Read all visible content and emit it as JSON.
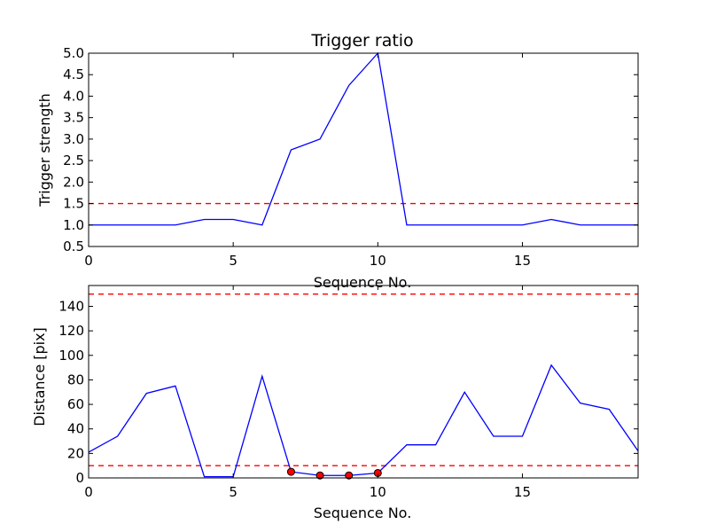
{
  "colors": {
    "line": "#0000ff",
    "threshold": "#ff0000",
    "marker_fill": "#ff0000",
    "marker_edge": "#000000",
    "frame": "#000000"
  },
  "chart_data": [
    {
      "type": "line",
      "title": "Trigger ratio",
      "xlabel": "Sequence No.",
      "ylabel": "Trigger strength",
      "xlim": [
        0,
        19
      ],
      "ylim": [
        0.5,
        5.0
      ],
      "xticks": [
        0,
        5,
        10,
        15
      ],
      "xtick_labels": [
        "0",
        "5",
        "10",
        "15"
      ],
      "yticks": [
        0.5,
        1.0,
        1.5,
        2.0,
        2.5,
        3.0,
        3.5,
        4.0,
        4.5,
        5.0
      ],
      "ytick_labels": [
        "0.5",
        "1.0",
        "1.5",
        "2.0",
        "2.5",
        "3.0",
        "3.5",
        "4.0",
        "4.5",
        "5.0"
      ],
      "grid": false,
      "x": [
        0,
        1,
        2,
        3,
        4,
        5,
        6,
        7,
        8,
        9,
        10,
        11,
        12,
        13,
        14,
        15,
        16,
        17,
        18,
        19
      ],
      "series": [
        {
          "values": [
            1.0,
            1.0,
            1.0,
            1.0,
            1.13,
            1.13,
            1.0,
            2.75,
            3.0,
            4.25,
            5.0,
            1.0,
            1.0,
            1.0,
            1.0,
            1.0,
            1.13,
            1.0,
            1.0,
            1.0
          ]
        }
      ],
      "hlines": [
        1.5
      ],
      "markers": {
        "x": [],
        "y": []
      }
    },
    {
      "type": "line",
      "title": "",
      "xlabel": "Sequence No.",
      "ylabel": "Distance [pix]",
      "xlim": [
        0,
        19
      ],
      "ylim": [
        0,
        157
      ],
      "xticks": [
        0,
        5,
        10,
        15
      ],
      "xtick_labels": [
        "0",
        "5",
        "10",
        "15"
      ],
      "yticks": [
        0,
        20,
        40,
        60,
        80,
        100,
        120,
        140
      ],
      "ytick_labels": [
        "0",
        "20",
        "40",
        "60",
        "80",
        "100",
        "120",
        "140"
      ],
      "grid": false,
      "x": [
        0,
        1,
        2,
        3,
        4,
        5,
        6,
        7,
        8,
        9,
        10,
        11,
        12,
        13,
        14,
        15,
        16,
        17,
        18,
        19
      ],
      "series": [
        {
          "values": [
            21,
            34,
            69,
            75,
            1,
            1,
            83,
            5,
            2,
            2,
            4,
            27,
            27,
            70,
            34,
            34,
            92,
            61,
            56,
            22
          ]
        }
      ],
      "hlines": [
        10,
        150
      ],
      "markers": {
        "x": [
          7,
          8,
          9,
          10
        ],
        "y": [
          5,
          2,
          2,
          4
        ]
      }
    }
  ]
}
